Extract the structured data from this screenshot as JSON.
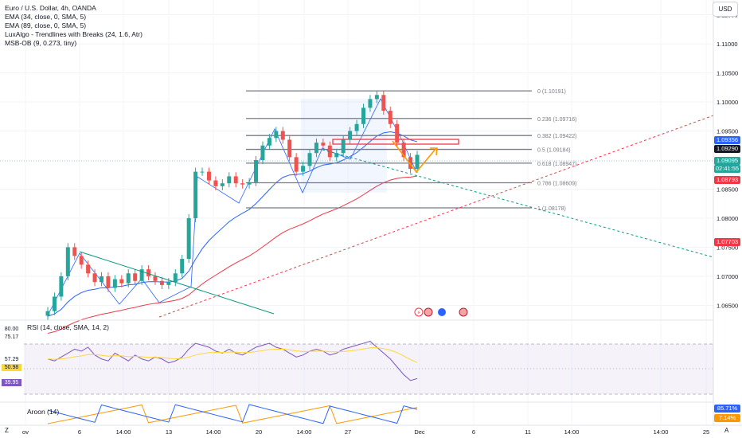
{
  "legend": {
    "title": "Euro / U.S. Dollar, 4h, OANDA",
    "ind1": "EMA (34, close, 0, SMA, 5)",
    "ind2": "EMA (89, close, 0, SMA, 5)",
    "ind3": "LuxAlgo - Trendlines with Breaks (24, 1.6, Atr)",
    "ind4": "MSB-OB (9, 0.273, tiny)"
  },
  "currency_button": "USD",
  "price_axis": [
    "1.11500",
    "1.11000",
    "1.10500",
    "1.10000",
    "1.09500",
    "1.08500",
    "1.08000",
    "1.07500",
    "1.07000",
    "1.06500"
  ],
  "price_tags": {
    "t1": "1.09356",
    "t2": "1.09290",
    "t3": "1.09095",
    "t3b": "02:41:55",
    "t4": "1.08793",
    "t5": "1.07703"
  },
  "fib_levels": [
    {
      "label": "0 (1.10191)"
    },
    {
      "label": "0.236 (1.09716)"
    },
    {
      "label": "0.382 (1.09422)"
    },
    {
      "label": "0.5 (1.09184)"
    },
    {
      "label": "0.618 (1.08947)"
    },
    {
      "label": "0.786 (1.08609)"
    },
    {
      "label": "1 (1.08178)"
    }
  ],
  "rsi": {
    "title": "RSI (14, close, SMA, 14, 2)",
    "left_top": "80.00",
    "left_upper": "75.17",
    "left_mid": "57.29",
    "tag_a": "50.98",
    "tag_b": "39.95"
  },
  "aroon": {
    "title": "Aroon (14)",
    "tag_up": "85.71%",
    "tag_down": "7.14%"
  },
  "time_axis": [
    "ov",
    "6",
    "14:00",
    "13",
    "14:00",
    "20",
    "14:00",
    "27",
    "Dec",
    "6",
    "11",
    "14:00",
    "14:00",
    "25"
  ],
  "corner_left": "Z",
  "corner_right": "A",
  "colors": {
    "up": "#26a69a",
    "down": "#ef5350",
    "ema34": "#2962ff",
    "ema89": "#f23645",
    "fib": "#787b86",
    "rsi": "#7e57c2",
    "rsi_ma": "#fdd835",
    "aroon_up": "#ff9800",
    "aroon_down": "#2962ff"
  },
  "chart_data": {
    "type": "candlestick",
    "title": "Euro / U.S. Dollar, 4h, OANDA",
    "ylim": [
      1.063,
      1.117
    ],
    "approx_close_path": [
      1.064,
      1.0665,
      1.07,
      1.075,
      1.0735,
      1.072,
      1.0705,
      1.069,
      1.07,
      1.068,
      1.0695,
      1.0688,
      1.0705,
      1.0692,
      1.0712,
      1.07,
      1.0692,
      1.0685,
      1.069,
      1.0705,
      1.073,
      1.08,
      1.088,
      1.088,
      1.0865,
      1.0855,
      1.086,
      1.0872,
      1.086,
      1.0858,
      1.0862,
      1.09,
      1.0925,
      1.0938,
      1.095,
      1.0935,
      1.0905,
      1.088,
      1.089,
      1.0912,
      1.093,
      1.0925,
      1.0905,
      1.0912,
      1.0935,
      1.095,
      1.0962,
      1.099,
      1.1005,
      1.1012,
      1.0985,
      1.0962,
      1.093,
      1.0905,
      1.0885,
      1.0909
    ]
  }
}
